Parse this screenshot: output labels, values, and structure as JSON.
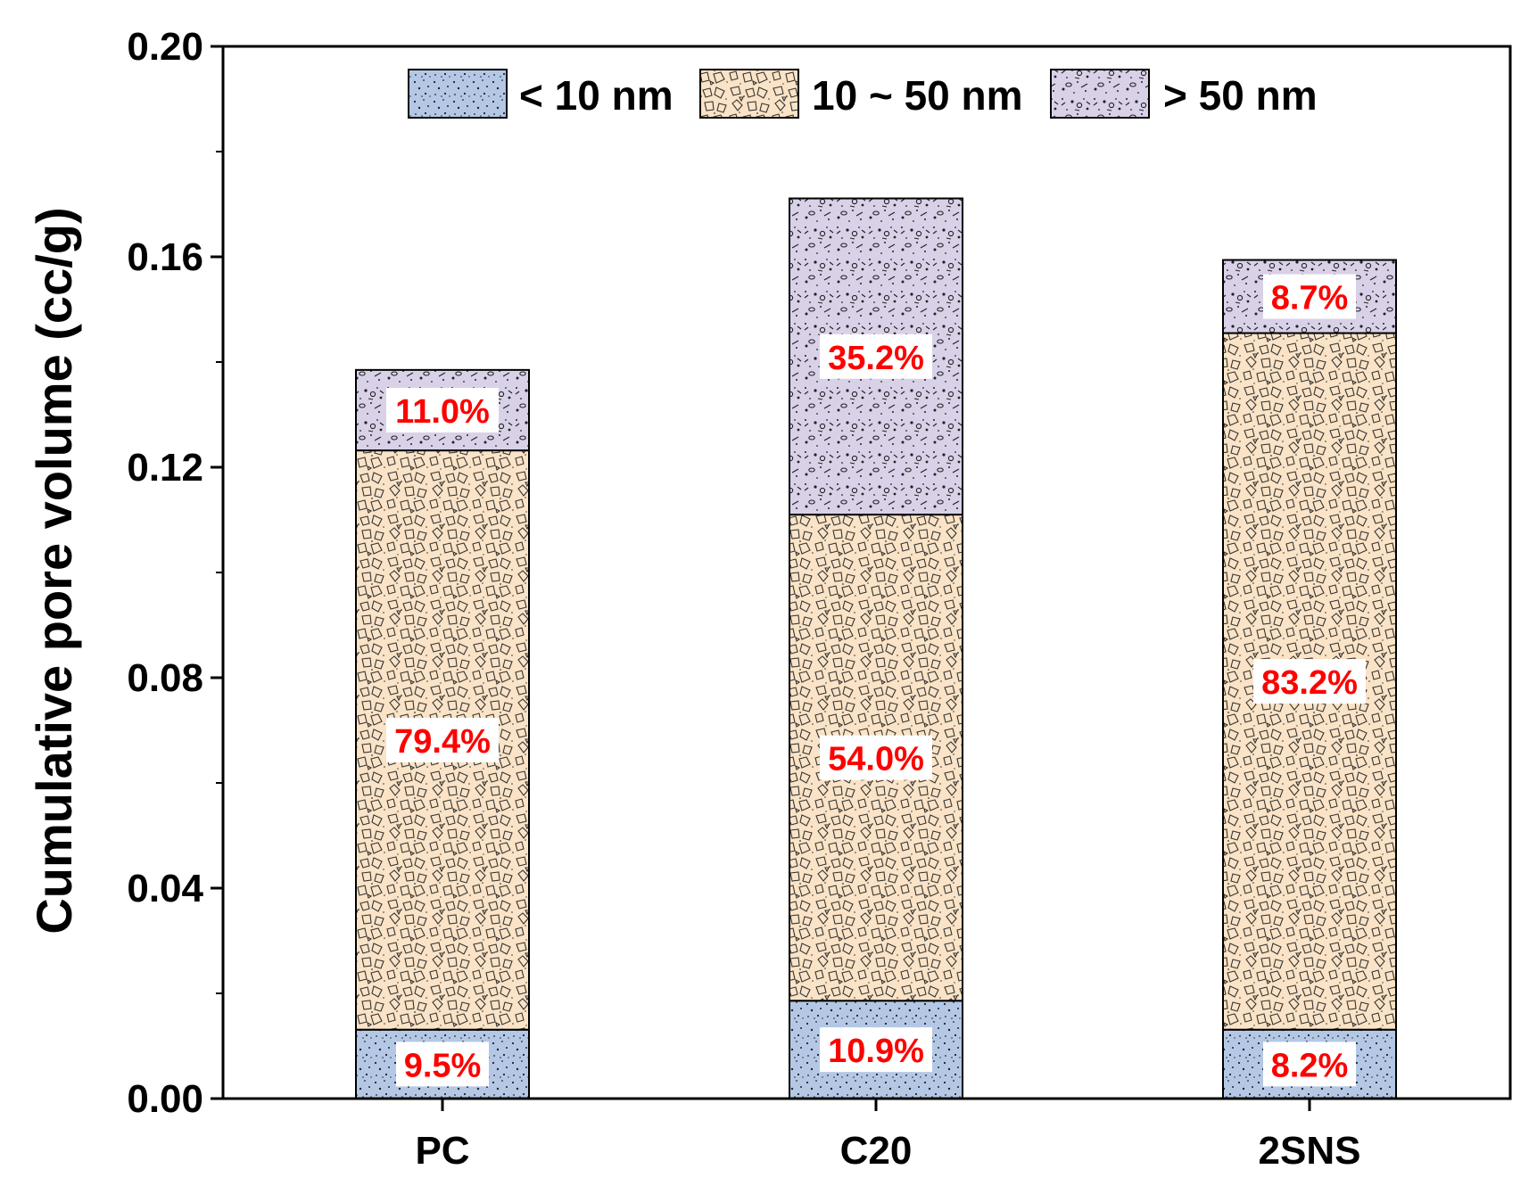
{
  "chart_data": {
    "type": "bar",
    "stacked": true,
    "title": "",
    "xlabel": "",
    "ylabel": "Cumulative pore volume (cc/g)",
    "ylim": [
      0,
      0.2
    ],
    "yticks": [
      0.0,
      0.04,
      0.08,
      0.12,
      0.16,
      0.2
    ],
    "ytick_labels": [
      "0.00",
      "0.04",
      "0.08",
      "0.12",
      "0.16",
      "0.20"
    ],
    "categories": [
      "PC",
      "C20",
      "2SNS"
    ],
    "series": [
      {
        "name": "< 10 nm",
        "pattern": "dots",
        "color": "#b4c8e6",
        "values": [
          0.0131,
          0.0186,
          0.0131
        ],
        "labels": [
          "9.5%",
          "10.9%",
          "8.2%"
        ]
      },
      {
        "name": "10 ~ 50 nm",
        "pattern": "shapes",
        "color": "#fae3c6",
        "values": [
          0.1101,
          0.0924,
          0.1324
        ],
        "labels": [
          "79.4%",
          "54.0%",
          "83.2%"
        ]
      },
      {
        "name": "> 50 nm",
        "pattern": "mixed",
        "color": "#d9d1e8",
        "values": [
          0.0153,
          0.0601,
          0.0139
        ],
        "labels": [
          "11.0%",
          "35.2%",
          "8.7%"
        ]
      }
    ],
    "legend_position": "top-center",
    "label_color": "#ff0000",
    "grid": false
  }
}
